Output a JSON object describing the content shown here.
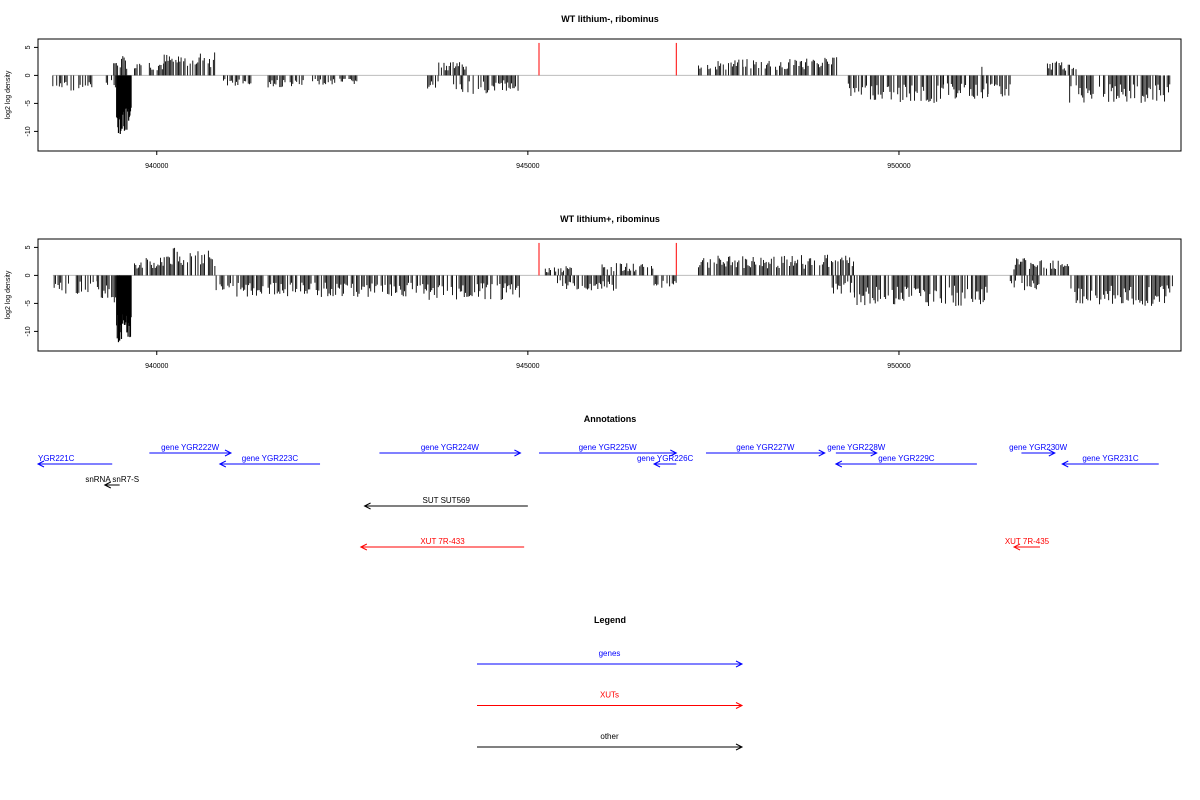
{
  "chart_data": [
    {
      "type": "bar",
      "id": "panel-lithium-minus",
      "title": "WT lithium-, ribominus",
      "ylabel": "log2 log density",
      "xlim": [
        938400,
        953800
      ],
      "ylim": [
        -13.5,
        6.5
      ],
      "yticks": [
        5,
        0,
        -5,
        -10
      ],
      "ytick_labels": [
        "5",
        "0",
        "-5",
        "-10"
      ],
      "xticks": [
        940000,
        945000,
        950000
      ],
      "xtick_labels": [
        "940000",
        "945000",
        "950000"
      ],
      "bar_color": "#000000",
      "marker_color": "#ff0000",
      "markers": [
        {
          "x": 945150,
          "y": 5.8
        },
        {
          "x": 947000,
          "y": 5.8
        }
      ],
      "series": [
        {
          "x0": 938600,
          "x1": 938900,
          "y": -2.5
        },
        {
          "x0": 938950,
          "x1": 939150,
          "y": -3.0
        },
        {
          "x0": 939320,
          "x1": 939450,
          "y": -2.0
        },
        {
          "x0": 939420,
          "x1": 939600,
          "y": 3.2
        },
        {
          "x0": 939460,
          "x1": 939660,
          "y": -10.5
        },
        {
          "x0": 939700,
          "x1": 939800,
          "y": 3.0
        },
        {
          "x0": 939900,
          "x1": 940100,
          "y": 2.5
        },
        {
          "x0": 940100,
          "x1": 940500,
          "y": 3.6
        },
        {
          "x0": 940500,
          "x1": 940800,
          "y": 4.0
        },
        {
          "x0": 940900,
          "x1": 941300,
          "y": -1.8
        },
        {
          "x0": 941500,
          "x1": 942000,
          "y": -2.0
        },
        {
          "x0": 942100,
          "x1": 942700,
          "y": -1.5
        },
        {
          "x0": 943650,
          "x1": 943800,
          "y": -2.5
        },
        {
          "x0": 943800,
          "x1": 944200,
          "y": 2.5
        },
        {
          "x0": 944000,
          "x1": 944500,
          "y": -3.0
        },
        {
          "x0": 944500,
          "x1": 944900,
          "y": -2.5
        },
        {
          "x0": 947300,
          "x1": 947900,
          "y": 2.6
        },
        {
          "x0": 947900,
          "x1": 948600,
          "y": 2.8
        },
        {
          "x0": 948600,
          "x1": 949200,
          "y": 3.0
        },
        {
          "x0": 949300,
          "x1": 950000,
          "y": -4.0
        },
        {
          "x0": 950000,
          "x1": 950600,
          "y": -4.5
        },
        {
          "x0": 950600,
          "x1": 951200,
          "y": -4.0
        },
        {
          "x0": 951200,
          "x1": 951500,
          "y": -3.5
        },
        {
          "x0": 951100,
          "x1": 951130,
          "y": 2.8
        },
        {
          "x0": 952000,
          "x1": 952400,
          "y": 2.4
        },
        {
          "x0": 952300,
          "x1": 953700,
          "y": -4.5
        }
      ]
    },
    {
      "type": "bar",
      "id": "panel-lithium-plus",
      "title": "WT lithium+, ribominus",
      "ylabel": "log2 log density",
      "xlim": [
        938400,
        953800
      ],
      "ylim": [
        -13.5,
        6.5
      ],
      "yticks": [
        5,
        0,
        -5,
        -10
      ],
      "ytick_labels": [
        "5",
        "0",
        "-5",
        "-10"
      ],
      "xticks": [
        940000,
        945000,
        950000
      ],
      "xtick_labels": [
        "940000",
        "945000",
        "950000"
      ],
      "bar_color": "#000000",
      "marker_color": "#ff0000",
      "markers": [
        {
          "x": 945150,
          "y": 5.8
        },
        {
          "x": 947000,
          "y": 5.8
        }
      ],
      "series": [
        {
          "x0": 938600,
          "x1": 939200,
          "y": -3.0
        },
        {
          "x0": 939200,
          "x1": 939500,
          "y": -4.5
        },
        {
          "x0": 939460,
          "x1": 939660,
          "y": -12.0
        },
        {
          "x0": 939700,
          "x1": 940100,
          "y": 3.0
        },
        {
          "x0": 940100,
          "x1": 940800,
          "y": 4.5
        },
        {
          "x0": 940800,
          "x1": 942200,
          "y": -3.5
        },
        {
          "x0": 942200,
          "x1": 943600,
          "y": -3.5
        },
        {
          "x0": 943600,
          "x1": 944500,
          "y": -4.0
        },
        {
          "x0": 944500,
          "x1": 944900,
          "y": -4.0
        },
        {
          "x0": 945200,
          "x1": 945600,
          "y": 1.5
        },
        {
          "x0": 945400,
          "x1": 946200,
          "y": -2.5
        },
        {
          "x0": 946000,
          "x1": 946700,
          "y": 2.0
        },
        {
          "x0": 946700,
          "x1": 947000,
          "y": -2.0
        },
        {
          "x0": 947300,
          "x1": 948600,
          "y": 3.2
        },
        {
          "x0": 948600,
          "x1": 949400,
          "y": 3.4
        },
        {
          "x0": 949100,
          "x1": 949400,
          "y": -3.0
        },
        {
          "x0": 949400,
          "x1": 951200,
          "y": -5.0
        },
        {
          "x0": 951500,
          "x1": 951900,
          "y": -2.5
        },
        {
          "x0": 951550,
          "x1": 952300,
          "y": 3.0
        },
        {
          "x0": 952300,
          "x1": 953700,
          "y": -5.0
        }
      ]
    }
  ],
  "annotations": {
    "title": "Annotations",
    "features": [
      {
        "label": "YGR221C",
        "x0": 938350,
        "x1": 939400,
        "dir": "left",
        "row": 1,
        "kind": "gene"
      },
      {
        "label": "gene YGR222W",
        "x0": 939900,
        "x1": 941000,
        "dir": "right",
        "row": 0,
        "kind": "gene"
      },
      {
        "label": "gene YGR223C",
        "x0": 940850,
        "x1": 942200,
        "dir": "left",
        "row": 1,
        "kind": "gene"
      },
      {
        "label": "gene YGR224W",
        "x0": 943000,
        "x1": 944900,
        "dir": "right",
        "row": 0,
        "kind": "gene"
      },
      {
        "label": "gene YGR225W",
        "x0": 945150,
        "x1": 947000,
        "dir": "right",
        "row": 0,
        "kind": "gene"
      },
      {
        "label": "gene YGR226C",
        "x0": 946700,
        "x1": 947000,
        "dir": "left",
        "row": 1,
        "kind": "gene"
      },
      {
        "label": "gene YGR227W",
        "x0": 947400,
        "x1": 949000,
        "dir": "right",
        "row": 0,
        "kind": "gene"
      },
      {
        "label": "gene YGR228W",
        "x0": 949150,
        "x1": 949700,
        "dir": "right",
        "row": 0,
        "kind": "gene"
      },
      {
        "label": "gene YGR229C",
        "x0": 949150,
        "x1": 951050,
        "dir": "left",
        "row": 1,
        "kind": "gene"
      },
      {
        "label": "gene YGR230W",
        "x0": 951650,
        "x1": 952100,
        "dir": "right",
        "row": 0,
        "kind": "gene"
      },
      {
        "label": "gene YGR231C",
        "x0": 952200,
        "x1": 953500,
        "dir": "left",
        "row": 1,
        "kind": "gene"
      },
      {
        "label": "snRNA snR7-S",
        "x0": 939300,
        "x1": 939500,
        "dir": "left",
        "row": 2,
        "kind": "other"
      },
      {
        "label": "SUT SUT569",
        "x0": 942800,
        "x1": 945000,
        "dir": "left",
        "row": 3,
        "kind": "other"
      },
      {
        "label": "XUT 7R-433",
        "x0": 942750,
        "x1": 944950,
        "dir": "left",
        "row": 4,
        "kind": "xut"
      },
      {
        "label": "XUT 7R-435",
        "x0": 951550,
        "x1": 951900,
        "dir": "left",
        "row": 4,
        "kind": "xut"
      }
    ]
  },
  "legend": {
    "title": "Legend",
    "items": [
      {
        "label": "genes",
        "color": "#0000ff"
      },
      {
        "label": "XUTs",
        "color": "#ff0000"
      },
      {
        "label": "other",
        "color": "#000000"
      }
    ]
  },
  "colors": {
    "gene": "#0000ff",
    "xut": "#ff0000",
    "other": "#000000",
    "axis": "#000000",
    "baseline": "#bdbdbd"
  }
}
